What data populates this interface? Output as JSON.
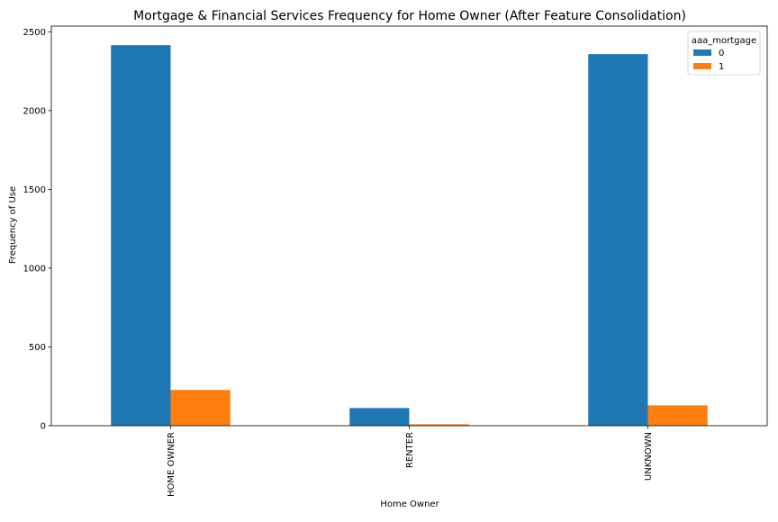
{
  "chart_data": {
    "type": "bar",
    "title": "Mortgage & Financial Services Frequency for Home Owner (After Feature Consolidation)",
    "xlabel": "Home Owner",
    "ylabel": "Frequency of Use",
    "categories": [
      "HOME OWNER",
      "RENTER",
      "UNKNOWN"
    ],
    "series": [
      {
        "name": "0",
        "values": [
          2415,
          112,
          2358
        ],
        "color": "#1f77b4"
      },
      {
        "name": "1",
        "values": [
          227,
          9,
          129
        ],
        "color": "#ff7f0e"
      }
    ],
    "ylim": [
      0,
      2536
    ],
    "yticks": [
      0,
      500,
      1000,
      1500,
      2000,
      2500
    ],
    "legend": {
      "title": "aaa_mortgage",
      "placement": "top-right"
    },
    "grid": false
  }
}
